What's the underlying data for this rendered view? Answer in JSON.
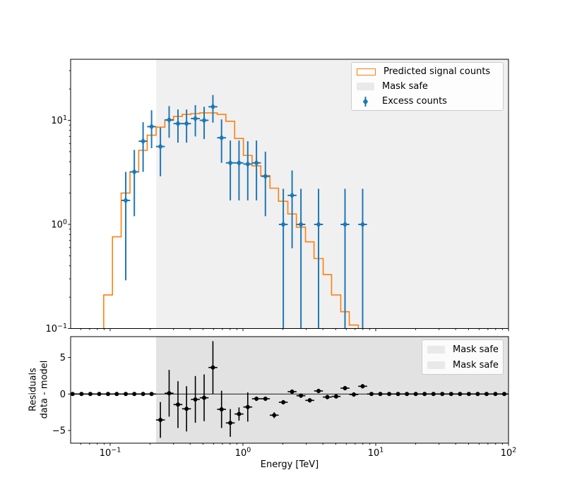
{
  "colors": {
    "predicted_signal": "#ff7f0e",
    "excess_counts": "#1f77b4",
    "residual": "#000000",
    "mask_safe_fill_top": "#f0f0f0",
    "mask_safe_fill_bottom": "#e2e2e2",
    "legend_swatch_gray": "#e9e9e9",
    "legend_border": "#cccccc",
    "axis_color": "#000000"
  },
  "chart_data": [
    {
      "type": "step-histogram+errorbar-scatter",
      "xscale": "log",
      "yscale": "log",
      "xlim_tev": [
        0.05,
        100
      ],
      "ylim": [
        0.1,
        38
      ],
      "yticks": [
        10,
        1,
        0.1
      ],
      "ytick_exponents": [
        1,
        0,
        -1
      ],
      "mask_safe_tev": [
        0.222,
        100
      ],
      "legend": [
        "Predicted signal counts",
        "Mask safe",
        "Excess counts"
      ],
      "predicted_signal": {
        "bin_edges_tev": [
          0.0894,
          0.104,
          0.121,
          0.141,
          0.164,
          0.19,
          0.222,
          0.258,
          0.3,
          0.349,
          0.406,
          0.473,
          0.55,
          0.64,
          0.744,
          0.866,
          1.008,
          1.172,
          1.363,
          1.598,
          1.852,
          2.178,
          2.525,
          2.959,
          3.43,
          4.02,
          4.65,
          5.45,
          6.32,
          7.4
        ],
        "counts": [
          0.21,
          0.76,
          2.0,
          3.2,
          5.15,
          7.2,
          8.6,
          10.0,
          10.9,
          11.4,
          11.6,
          11.8,
          11.8,
          11.4,
          9.8,
          6.7,
          4.6,
          3.65,
          2.94,
          2.23,
          1.67,
          1.26,
          0.94,
          0.68,
          0.47,
          0.33,
          0.21,
          0.145,
          0.108
        ]
      },
      "excess": {
        "xerr_factor": 1.08,
        "energy_tev": [
          0.131,
          0.152,
          0.177,
          0.205,
          0.239,
          0.278,
          0.324,
          0.376,
          0.438,
          0.51,
          0.594,
          0.69,
          0.803,
          0.934,
          1.087,
          1.264,
          1.476,
          2.013,
          2.345,
          2.734,
          3.71,
          5.87,
          7.97
        ],
        "counts": [
          1.7,
          3.2,
          6.3,
          8.7,
          5.6,
          10.1,
          9.3,
          9.3,
          10.4,
          10.0,
          13.5,
          6.8,
          3.9,
          3.9,
          3.8,
          3.9,
          2.9,
          1.0,
          1.9,
          1.0,
          1.0,
          1.0,
          1.0
        ],
        "err_lo": [
          0.29,
          1.2,
          3.2,
          5.4,
          2.9,
          6.8,
          6.1,
          6.1,
          7.0,
          6.6,
          9.5,
          3.9,
          1.7,
          1.7,
          1.7,
          1.7,
          1.2,
          0.04,
          0.59,
          0.04,
          0.04,
          0.04,
          0.04
        ],
        "err_hi": [
          3.2,
          5.2,
          9.6,
          12.5,
          8.5,
          13.7,
          12.7,
          12.7,
          14.0,
          13.5,
          17.5,
          10.2,
          6.4,
          6.4,
          6.3,
          6.4,
          5.0,
          2.2,
          3.3,
          2.2,
          2.2,
          2.2,
          2.2
        ]
      }
    },
    {
      "type": "errorbar-scatter",
      "xscale": "log",
      "xlabel": "Energy [TeV]",
      "ylabel_lines": [
        "Residuals",
        "data - model"
      ],
      "xlim_tev": [
        0.05,
        100
      ],
      "ylim": [
        -6.7,
        7.9
      ],
      "yticks": [
        5,
        0,
        -5
      ],
      "xticks_tev": [
        0.1,
        1,
        10,
        100
      ],
      "xtick_exponents": [
        -1,
        0,
        1,
        2
      ],
      "mask_safe_tev": [
        0.222,
        100
      ],
      "legend": [
        "Mask safe",
        "Mask safe"
      ],
      "points": {
        "xerr_factor": 1.08,
        "energy_tev": [
          0.0521,
          0.0608,
          0.0709,
          0.0827,
          0.0964,
          0.112,
          0.131,
          0.152,
          0.177,
          0.205,
          0.239,
          0.278,
          0.324,
          0.376,
          0.438,
          0.51,
          0.594,
          0.69,
          0.803,
          0.934,
          1.087,
          1.264,
          1.476,
          1.72,
          2.013,
          2.345,
          2.734,
          3.186,
          3.71,
          4.32,
          5.03,
          5.87,
          6.84,
          7.97,
          9.29,
          10.83,
          12.63,
          14.73,
          17.17,
          20.02,
          23.34,
          27.21,
          31.73,
          36.99,
          43.13,
          50.29,
          58.63,
          68.35,
          79.69,
          92.91
        ],
        "residual": [
          0,
          0,
          0,
          0,
          0,
          0,
          0,
          0,
          0,
          0,
          -3.55,
          0.1,
          -1.45,
          -2.03,
          -0.74,
          -0.52,
          3.63,
          -2.1,
          -3.96,
          -2.74,
          -1.78,
          -0.65,
          -0.65,
          -2.9,
          -1.13,
          0.32,
          -0.23,
          -0.87,
          0.42,
          -0.42,
          -0.33,
          0.8,
          -0.07,
          1.06,
          0,
          0,
          0,
          0,
          0,
          0,
          0,
          0,
          0,
          0,
          0,
          0,
          0,
          0,
          0,
          0
        ],
        "err": [
          0,
          0,
          0,
          0,
          0,
          0,
          0,
          0,
          0,
          0,
          2.45,
          3.2,
          3.2,
          3.1,
          3.2,
          3.2,
          3.6,
          2.55,
          1.9,
          0.9,
          2.0,
          0.3,
          0.3,
          0.4,
          0.3,
          0.3,
          0.3,
          0.3,
          0.3,
          0.3,
          0.3,
          0.3,
          0.3,
          0.3,
          0,
          0,
          0,
          0,
          0,
          0,
          0,
          0,
          0,
          0,
          0,
          0,
          0,
          0,
          0,
          0
        ]
      }
    }
  ]
}
